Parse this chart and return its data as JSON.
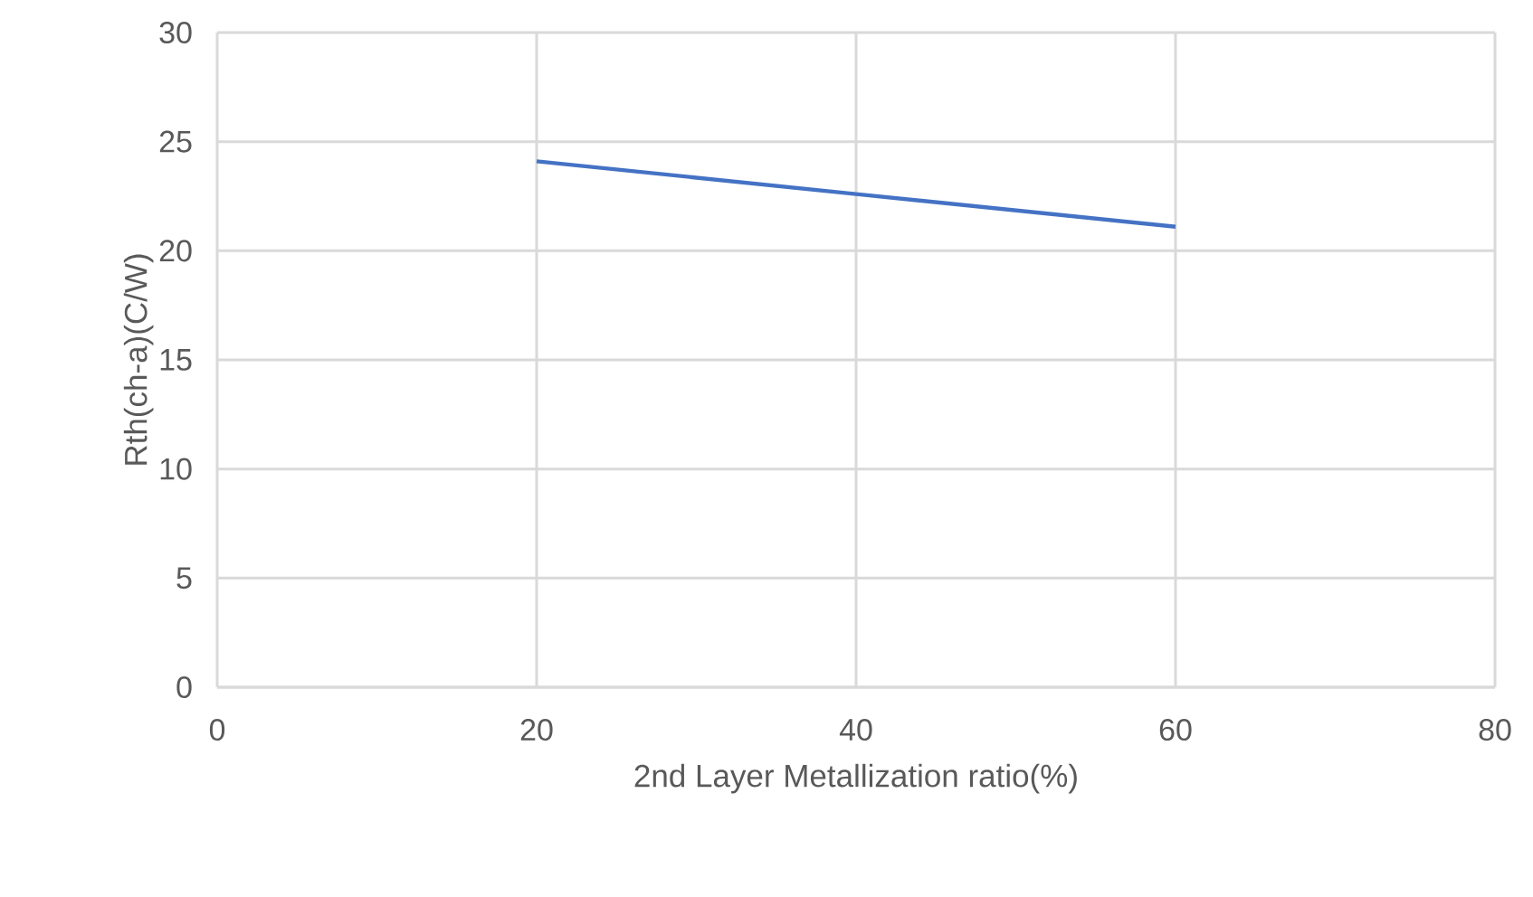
{
  "chart_data": {
    "type": "line",
    "xlabel": "2nd Layer Metallization ratio(%)",
    "ylabel": "Rth(ch-a)(C/W)",
    "x": [
      20,
      40,
      60
    ],
    "series": [
      {
        "color": "#4472c4",
        "values": [
          24.1,
          22.6,
          21.1
        ]
      }
    ],
    "xlim": [
      0,
      80
    ],
    "xticks": [
      0,
      20,
      40,
      60,
      80
    ],
    "ylim": [
      0,
      30
    ],
    "yticks": [
      0,
      5,
      10,
      15,
      20,
      25,
      30
    ],
    "grid": true,
    "marker": "none",
    "line_style": "solid"
  }
}
